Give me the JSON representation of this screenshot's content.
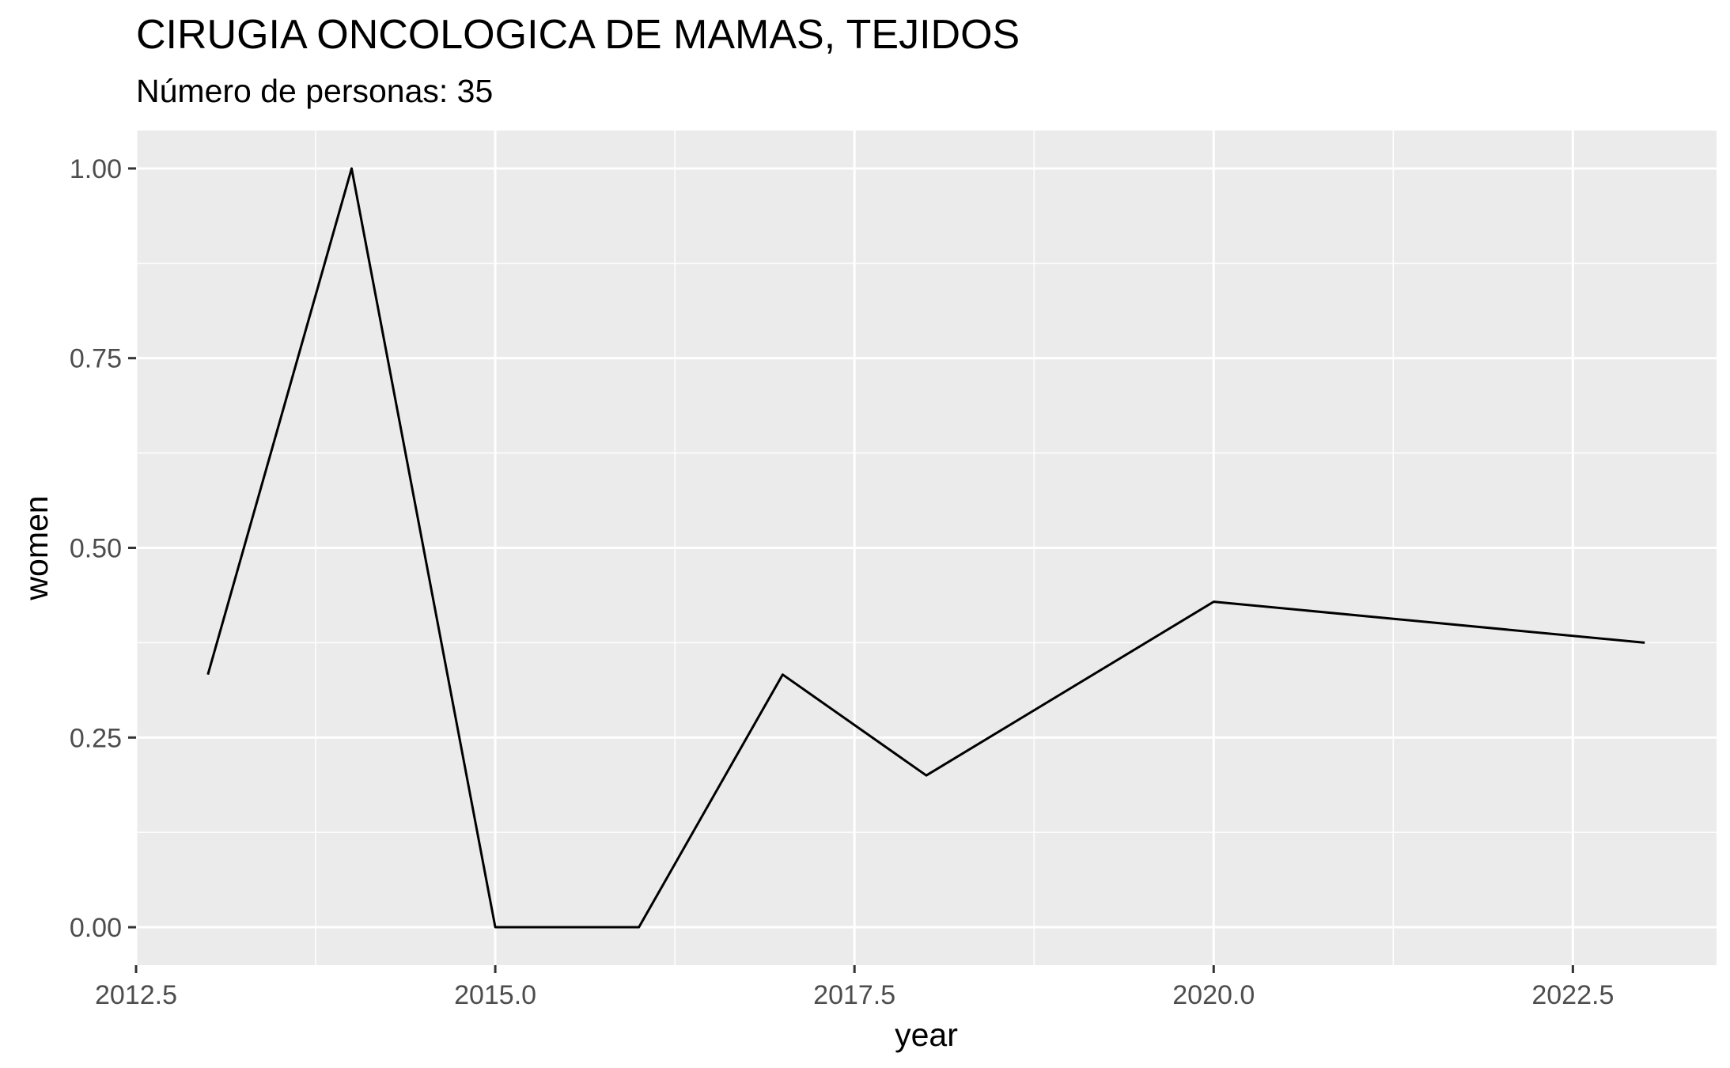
{
  "chart_data": {
    "type": "line",
    "title": "CIRUGIA ONCOLOGICA DE MAMAS, TEJIDOS",
    "subtitle": "Número de personas: 35",
    "xlabel": "year",
    "ylabel": "women",
    "xlim": [
      2012.5,
      2023.5
    ],
    "ylim": [
      -0.05,
      1.05
    ],
    "x_ticks": [
      2012.5,
      2015.0,
      2017.5,
      2020.0,
      2022.5
    ],
    "x_tick_labels": [
      "2012.5",
      "2015.0",
      "2017.5",
      "2020.0",
      "2022.5"
    ],
    "y_ticks": [
      0.0,
      0.25,
      0.5,
      0.75,
      1.0
    ],
    "y_tick_labels": [
      "0.00",
      "0.25",
      "0.50",
      "0.75",
      "1.00"
    ],
    "grid": true,
    "series": [
      {
        "x": [
          2013,
          2014,
          2015,
          2016,
          2017,
          2018,
          2020,
          2023
        ],
        "y": [
          0.333,
          1.0,
          0.0,
          0.0,
          0.333,
          0.2,
          0.429,
          0.375
        ]
      }
    ],
    "colors": {
      "panel": "#ebebeb",
      "grid": "#ffffff",
      "line": "#000000",
      "tick_text": "#4d4d4d"
    }
  }
}
